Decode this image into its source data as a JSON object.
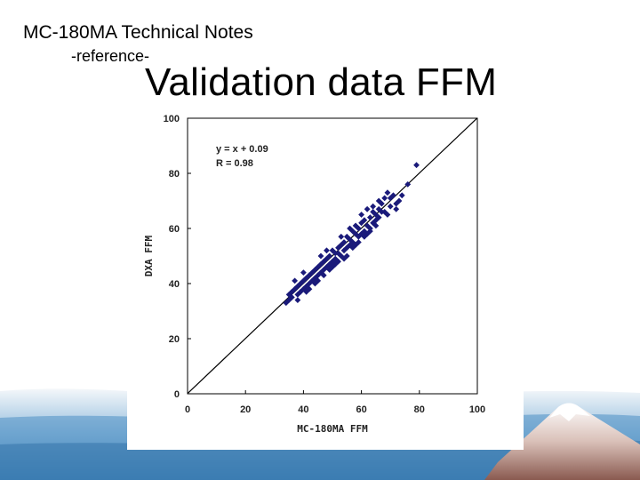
{
  "header": {
    "title": "MC-180MA  Technical Notes",
    "subtitle": "-reference-"
  },
  "slide_title": "Validation data FFM",
  "colors": {
    "points": "#1a1a7a",
    "line": "#000000",
    "band_top": "#f4f7fa",
    "band_mid": "#7fb0d3",
    "band_dark": "#3d82b8"
  },
  "chart_data": {
    "type": "scatter",
    "xlabel": "MC-180MA FFM",
    "ylabel": "DXA FFM",
    "xlim": [
      0,
      100
    ],
    "ylim": [
      0,
      100
    ],
    "x_ticks": [
      "0",
      "20",
      "40",
      "60",
      "80",
      "100"
    ],
    "y_ticks": [
      "0",
      "20",
      "40",
      "60",
      "80",
      "100"
    ],
    "grid": false,
    "annotations": [
      "y = x + 0.09",
      "R = 0.98"
    ],
    "regression": {
      "slope": 1,
      "intercept": 0.09
    },
    "points": [
      [
        79,
        83
      ],
      [
        76,
        76
      ],
      [
        74,
        72
      ],
      [
        73,
        70
      ],
      [
        72,
        69
      ],
      [
        71,
        72
      ],
      [
        70,
        68
      ],
      [
        69,
        73
      ],
      [
        68,
        71
      ],
      [
        67,
        66
      ],
      [
        67,
        69
      ],
      [
        66,
        64
      ],
      [
        66,
        67
      ],
      [
        65,
        63
      ],
      [
        65,
        65
      ],
      [
        64,
        62
      ],
      [
        64,
        66
      ],
      [
        63,
        60
      ],
      [
        63,
        64
      ],
      [
        62,
        67
      ],
      [
        62,
        61
      ],
      [
        61,
        59
      ],
      [
        61,
        63
      ],
      [
        60,
        58
      ],
      [
        60,
        62
      ],
      [
        59,
        60
      ],
      [
        59,
        57
      ],
      [
        58,
        61
      ],
      [
        58,
        58
      ],
      [
        57,
        55
      ],
      [
        57,
        59
      ],
      [
        56,
        56
      ],
      [
        56,
        54
      ],
      [
        55,
        57
      ],
      [
        55,
        53
      ],
      [
        54,
        55
      ],
      [
        54,
        52
      ],
      [
        53,
        54
      ],
      [
        53,
        50
      ],
      [
        52,
        51
      ],
      [
        52,
        53
      ],
      [
        51,
        49
      ],
      [
        51,
        51
      ],
      [
        50,
        48
      ],
      [
        50,
        52
      ],
      [
        49,
        50
      ],
      [
        49,
        47
      ],
      [
        48,
        49
      ],
      [
        48,
        46
      ],
      [
        47,
        48
      ],
      [
        47,
        45
      ],
      [
        46,
        47
      ],
      [
        46,
        44
      ],
      [
        45,
        46
      ],
      [
        45,
        43
      ],
      [
        44,
        45
      ],
      [
        44,
        42
      ],
      [
        43,
        44
      ],
      [
        43,
        41
      ],
      [
        42,
        43
      ],
      [
        42,
        40
      ],
      [
        41,
        42
      ],
      [
        41,
        39
      ],
      [
        40,
        41
      ],
      [
        40,
        38
      ],
      [
        39,
        40
      ],
      [
        39,
        37
      ],
      [
        38,
        39
      ],
      [
        38,
        36
      ],
      [
        37,
        38
      ],
      [
        36,
        35
      ],
      [
        36,
        37
      ],
      [
        35,
        34
      ],
      [
        35,
        36
      ],
      [
        34,
        33
      ],
      [
        37,
        41
      ],
      [
        40,
        44
      ],
      [
        42,
        38
      ],
      [
        45,
        41
      ],
      [
        46,
        50
      ],
      [
        48,
        52
      ],
      [
        49,
        45
      ],
      [
        51,
        47
      ],
      [
        53,
        57
      ],
      [
        55,
        50
      ],
      [
        56,
        60
      ],
      [
        58,
        54
      ],
      [
        60,
        65
      ],
      [
        62,
        58
      ],
      [
        64,
        68
      ],
      [
        65,
        61
      ],
      [
        66,
        70
      ],
      [
        68,
        66
      ],
      [
        69,
        65
      ],
      [
        70,
        71
      ],
      [
        72,
        67
      ],
      [
        38,
        34
      ],
      [
        41,
        37
      ],
      [
        44,
        40
      ],
      [
        47,
        43
      ],
      [
        50,
        46
      ],
      [
        52,
        48
      ],
      [
        54,
        49
      ],
      [
        57,
        53
      ],
      [
        59,
        55
      ],
      [
        61,
        57
      ],
      [
        63,
        59
      ]
    ]
  }
}
